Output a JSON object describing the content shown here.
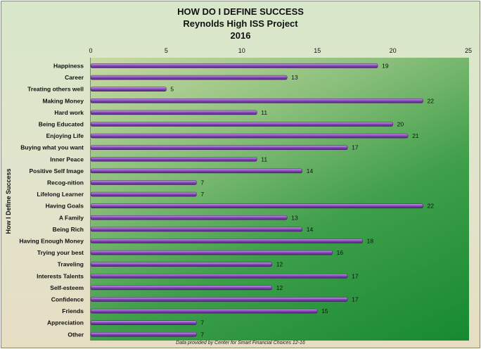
{
  "chart_data": {
    "type": "bar",
    "orientation": "horizontal",
    "title": "HOW DO I DEFINE SUCCESS",
    "subtitle": "Reynolds High ISS Project",
    "subtitle2": "2016",
    "ylabel": "How I Define Success",
    "xlabel": "",
    "xlim": [
      0,
      25
    ],
    "xticks": [
      0,
      5,
      10,
      15,
      20,
      25
    ],
    "x_axis_position": "top",
    "grid": false,
    "categories": [
      "Happiness",
      "Career",
      "Treating others well",
      "Making Money",
      "Hard work",
      "Being Educated",
      "Enjoying Life",
      "Buying what you want",
      "Inner Peace",
      "Positive Self Image",
      "Recog-nition",
      "Lifelong Learner",
      "Having Goals",
      "A Family",
      "Being Rich",
      "Having Enough Money",
      "Trying your best",
      "Traveling",
      "Interests Talents",
      "Self-esteem",
      "Confidence",
      "Friends",
      "Appreciation",
      "Other"
    ],
    "values": [
      19,
      13,
      5,
      22,
      11,
      20,
      21,
      17,
      11,
      14,
      7,
      7,
      22,
      13,
      14,
      18,
      16,
      12,
      17,
      12,
      17,
      15,
      7,
      7
    ],
    "bar_color": "#7b3fa8",
    "bar_highlight": "#c7a4e6",
    "footnote": "Data provided by Center for Smart Financial Choices 12-16"
  }
}
